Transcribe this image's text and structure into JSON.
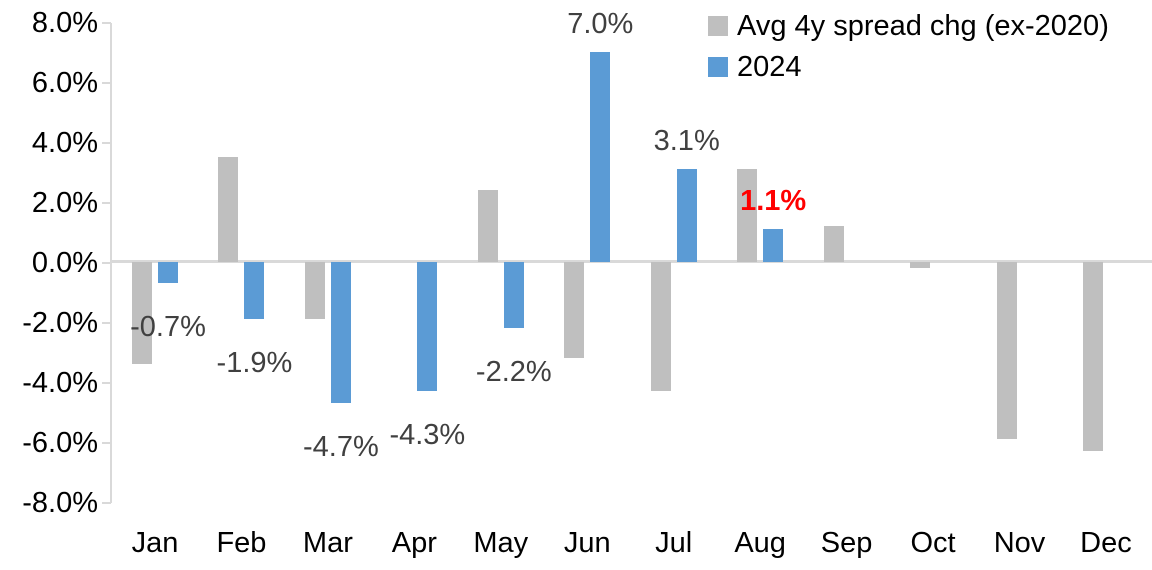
{
  "chart_data": {
    "type": "bar",
    "title": "",
    "categories": [
      "Jan",
      "Feb",
      "Mar",
      "Apr",
      "May",
      "Jun",
      "Jul",
      "Aug",
      "Sep",
      "Oct",
      "Nov",
      "Dec"
    ],
    "series": [
      {
        "name": "Avg 4y spread chg (ex-2020)",
        "color": "#bfbfbf",
        "values": [
          -3.4,
          3.5,
          -1.9,
          0.0,
          2.4,
          -3.2,
          -4.3,
          3.1,
          1.2,
          -0.2,
          -5.9,
          -6.3
        ]
      },
      {
        "name": "2024",
        "color": "#5b9bd5",
        "values": [
          -0.7,
          -1.9,
          -4.7,
          -4.3,
          -2.2,
          7.0,
          3.1,
          1.1,
          null,
          null,
          null,
          null
        ]
      }
    ],
    "data_labels": [
      {
        "category": "Jan",
        "text": "-0.7%",
        "color": "#404040",
        "bold": false
      },
      {
        "category": "Feb",
        "text": "-1.9%",
        "color": "#404040",
        "bold": false
      },
      {
        "category": "Mar",
        "text": "-4.7%",
        "color": "#404040",
        "bold": false
      },
      {
        "category": "Apr",
        "text": "-4.3%",
        "color": "#404040",
        "bold": false
      },
      {
        "category": "May",
        "text": "-2.2%",
        "color": "#404040",
        "bold": false
      },
      {
        "category": "Jun",
        "text": "7.0%",
        "color": "#404040",
        "bold": false
      },
      {
        "category": "Jul",
        "text": "3.1%",
        "color": "#404040",
        "bold": false
      },
      {
        "category": "Aug",
        "text": "1.1%",
        "color": "#ff0000",
        "bold": true
      }
    ],
    "y_axis": {
      "ticks": [
        "8.0%",
        "6.0%",
        "4.0%",
        "2.0%",
        "0.0%",
        "-2.0%",
        "-4.0%",
        "-6.0%",
        "-8.0%"
      ],
      "min": -8,
      "max": 8,
      "step": 2
    },
    "legend": {
      "position": "top-right",
      "entries": [
        "Avg 4y spread chg (ex-2020)",
        "2024"
      ]
    },
    "colors": {
      "axis_line": "#d9d9d9",
      "axis_text": "#000000",
      "label_text": "#404040",
      "highlight_label": "#ff0000"
    },
    "grid": "off"
  }
}
